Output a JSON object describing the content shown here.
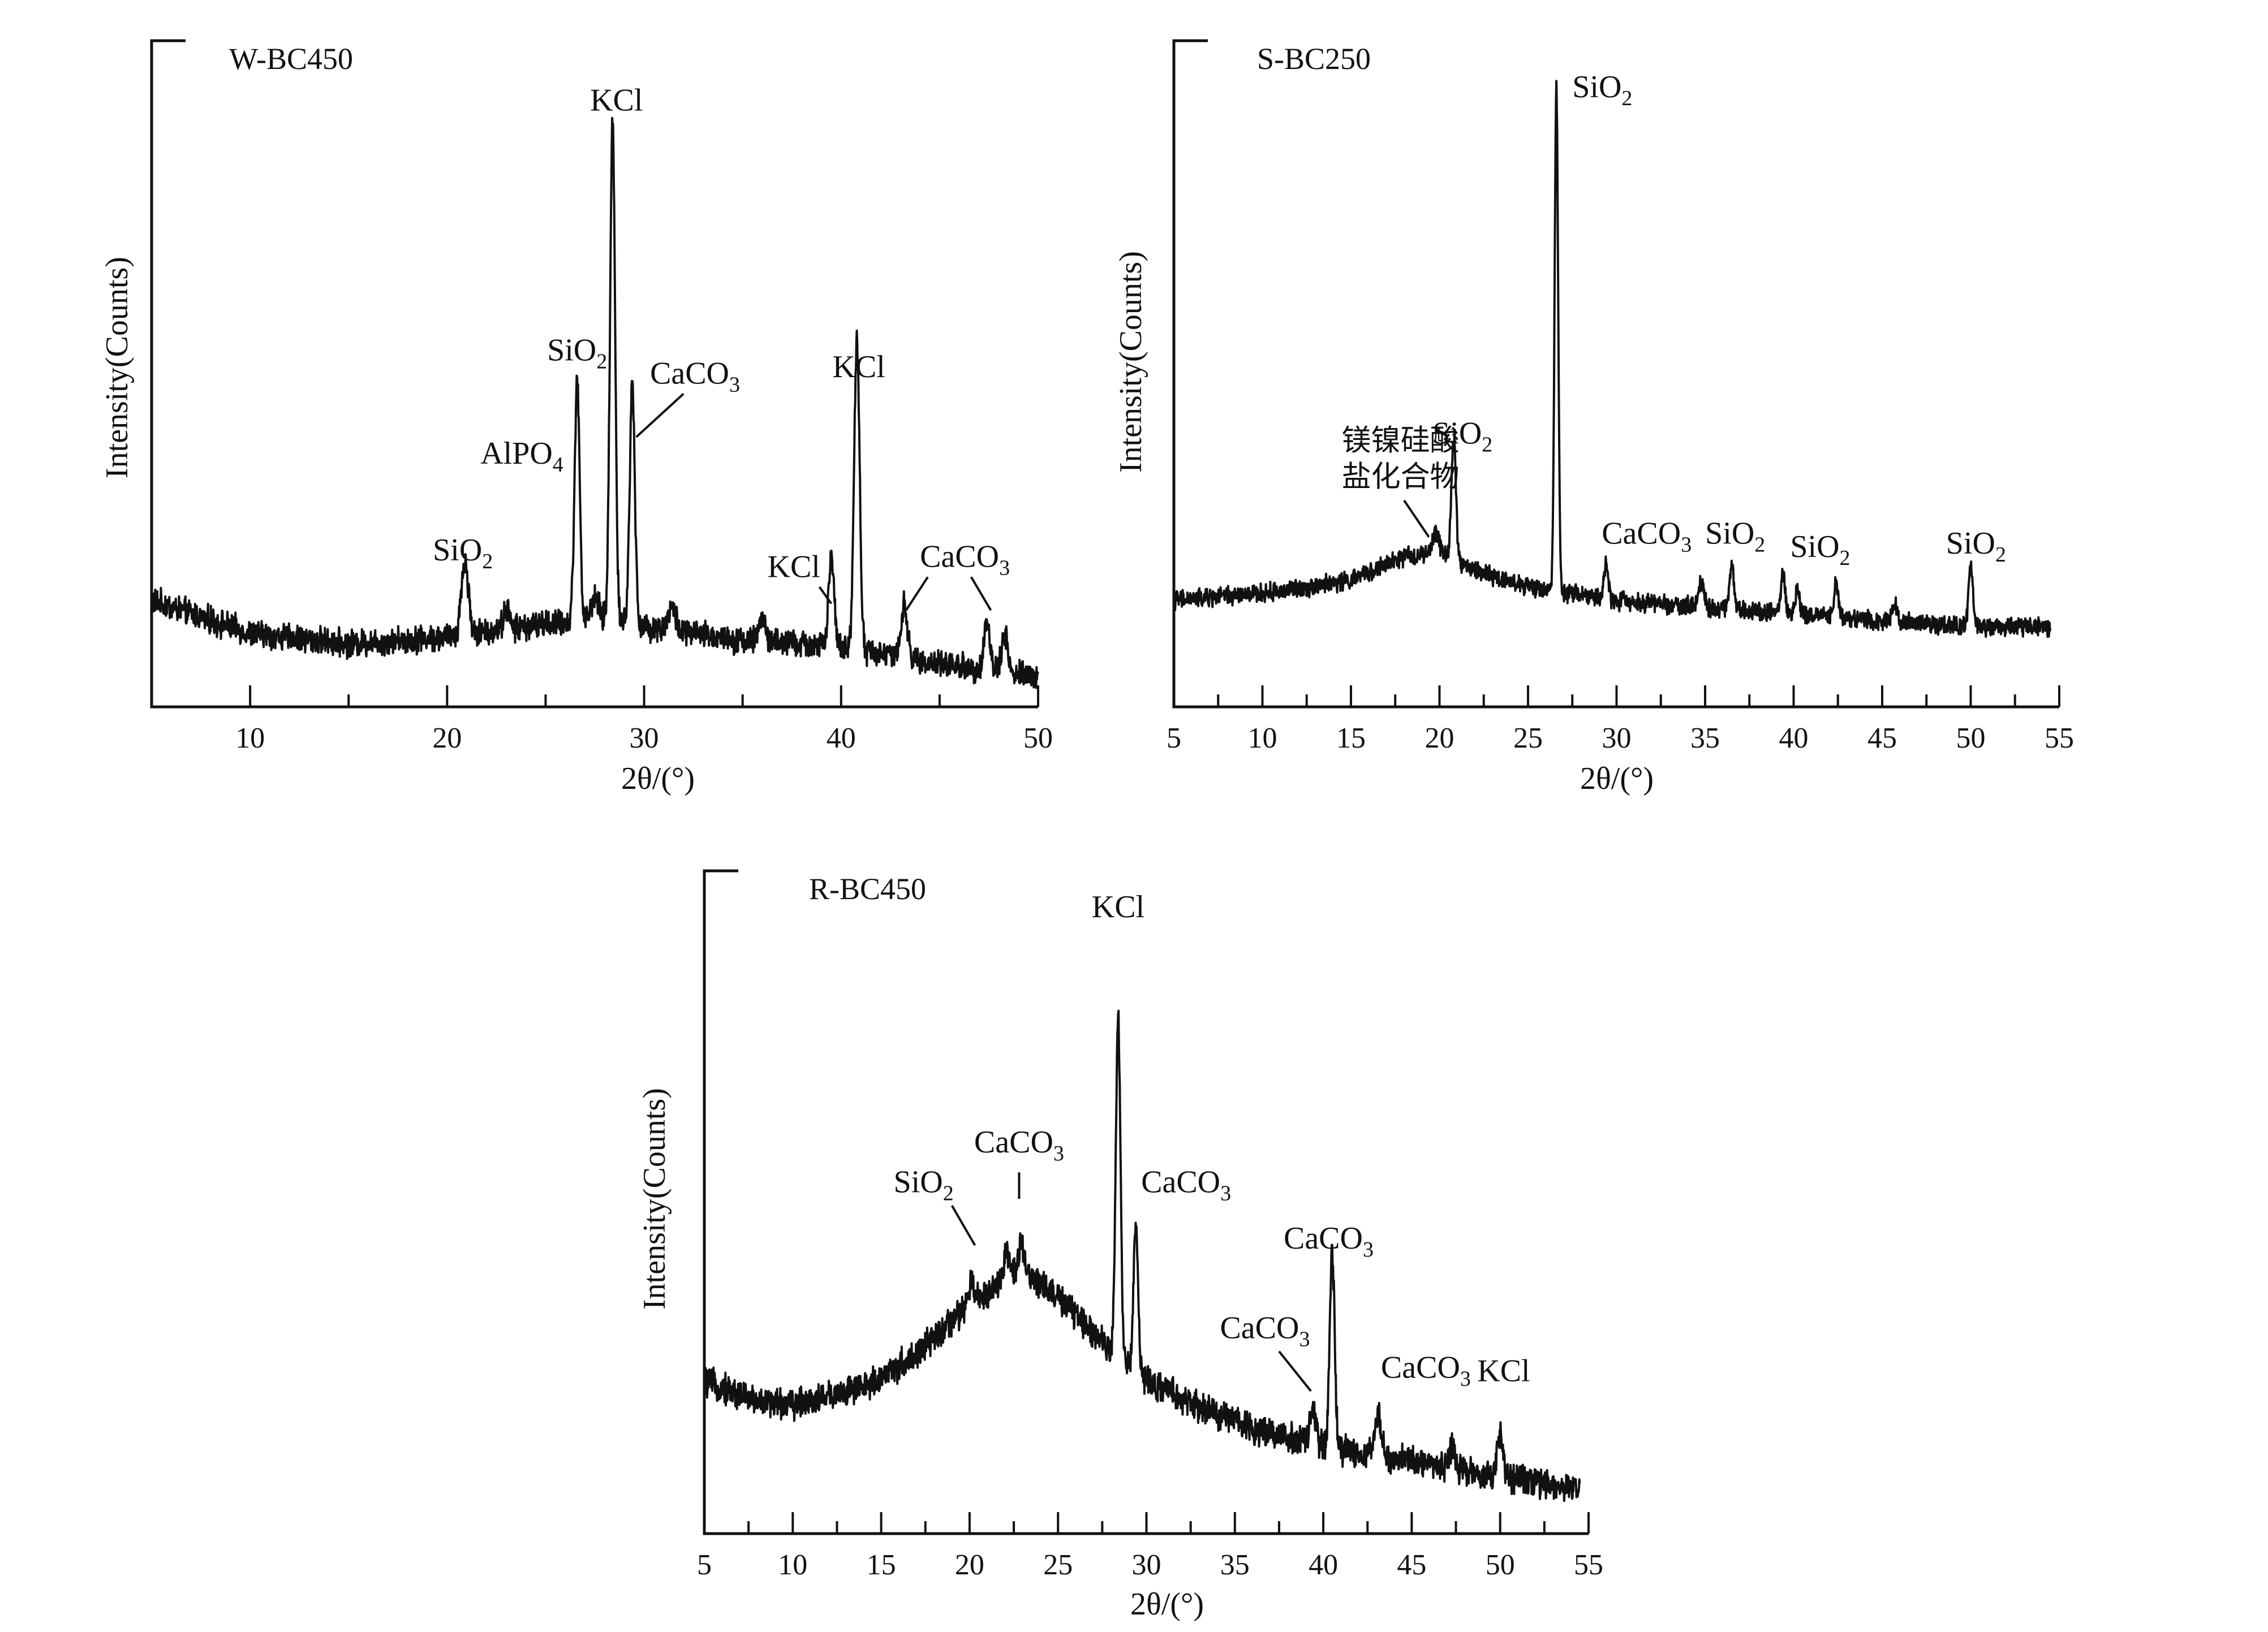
{
  "chart_data": [
    {
      "id": "w",
      "type": "line",
      "title": "W-BC450",
      "xlabel": "2θ/(°)",
      "ylabel": "Intensity(Counts)",
      "xlim": [
        5,
        50
      ],
      "ylim": [
        0,
        100
      ],
      "x_ticks": [
        10,
        20,
        30,
        40,
        50
      ],
      "grid": false,
      "legend": "none",
      "baseline": [
        [
          5,
          16
        ],
        [
          10,
          11
        ],
        [
          15,
          9.5
        ],
        [
          20,
          10.5
        ],
        [
          25,
          12.5
        ],
        [
          28,
          13
        ],
        [
          30,
          12
        ],
        [
          35,
          10
        ],
        [
          40,
          9
        ],
        [
          45,
          6.5
        ],
        [
          50,
          4.5
        ]
      ],
      "noise": 1.6,
      "peaks": [
        {
          "x": 20.9,
          "h": 11,
          "w": 0.18
        },
        {
          "x": 23.0,
          "h": 3,
          "w": 0.15
        },
        {
          "x": 26.6,
          "h": 36,
          "w": 0.13
        },
        {
          "x": 27.5,
          "h": 3.5,
          "w": 0.2
        },
        {
          "x": 28.4,
          "h": 75,
          "w": 0.13
        },
        {
          "x": 29.4,
          "h": 36,
          "w": 0.13
        },
        {
          "x": 31.4,
          "h": 3.5,
          "w": 0.2
        },
        {
          "x": 36.0,
          "h": 4,
          "w": 0.15
        },
        {
          "x": 39.5,
          "h": 13,
          "w": 0.14
        },
        {
          "x": 40.8,
          "h": 46,
          "w": 0.14
        },
        {
          "x": 43.2,
          "h": 8,
          "w": 0.15
        },
        {
          "x": 47.4,
          "h": 7,
          "w": 0.15
        },
        {
          "x": 48.3,
          "h": 6,
          "w": 0.15
        }
      ],
      "annotations": [
        {
          "base": "SiO",
          "sub": "2",
          "x": 20.8,
          "y": 22,
          "anchor": "middle",
          "leader": false
        },
        {
          "base": "AlPO",
          "sub": "4",
          "x": 25.9,
          "y": 36.5,
          "anchor": "end",
          "leader": false
        },
        {
          "base": "SiO",
          "sub": "2",
          "x": 26.6,
          "y": 52,
          "anchor": "middle",
          "leader": false
        },
        {
          "base": "KCl",
          "sub": "",
          "x": 28.6,
          "y": 89.5,
          "anchor": "middle",
          "leader": false
        },
        {
          "base": "CaCO",
          "sub": "3",
          "x": 30.3,
          "y": 48.5,
          "anchor": "start",
          "leader": true,
          "from": [
            32.0,
            47.0
          ],
          "to": [
            29.6,
            40.5
          ]
        },
        {
          "base": "KCl",
          "sub": "",
          "x": 40.9,
          "y": 49.5,
          "anchor": "middle",
          "leader": false
        },
        {
          "base": "KCl",
          "sub": "",
          "x": 37.6,
          "y": 19.5,
          "anchor": "middle",
          "leader": true,
          "from": [
            38.9,
            18.0
          ],
          "to": [
            39.5,
            15.5
          ]
        },
        {
          "base": "CaCO",
          "sub": "3",
          "x": 44.0,
          "y": 21,
          "anchor": "start",
          "leader": true,
          "from": [
            44.4,
            19.5
          ],
          "to": [
            43.3,
            14.5
          ]
        },
        {
          "base": "",
          "sub": "",
          "x": 0,
          "y": 0,
          "anchor": "start",
          "leader": true,
          "from": [
            46.6,
            19.5
          ],
          "to": [
            47.6,
            14.5
          ]
        }
      ]
    },
    {
      "id": "s",
      "type": "line",
      "title": "S-BC250",
      "xlabel": "2θ/(°)",
      "ylabel": "Intensity(Counts)",
      "xlim": [
        5,
        55
      ],
      "ylim": [
        0,
        100
      ],
      "x_ticks": [
        5,
        10,
        15,
        20,
        25,
        30,
        35,
        40,
        45,
        50,
        55
      ],
      "grid": false,
      "legend": "none",
      "baseline": [
        [
          5,
          16
        ],
        [
          10,
          17
        ],
        [
          15,
          19
        ],
        [
          18,
          22.5
        ],
        [
          20,
          23
        ],
        [
          22,
          20.5
        ],
        [
          25,
          18
        ],
        [
          30,
          16
        ],
        [
          35,
          15
        ],
        [
          40,
          14
        ],
        [
          45,
          13
        ],
        [
          50,
          12
        ],
        [
          54.5,
          12
        ]
      ],
      "noise": 1.1,
      "peaks": [
        {
          "x": 19.8,
          "h": 3,
          "w": 0.2
        },
        {
          "x": 20.8,
          "h": 18,
          "w": 0.13
        },
        {
          "x": 26.6,
          "h": 76,
          "w": 0.1
        },
        {
          "x": 29.4,
          "h": 5,
          "w": 0.12
        },
        {
          "x": 34.8,
          "h": 4,
          "w": 0.14
        },
        {
          "x": 36.5,
          "h": 7,
          "w": 0.12
        },
        {
          "x": 39.4,
          "h": 6,
          "w": 0.12
        },
        {
          "x": 40.2,
          "h": 3.5,
          "w": 0.12
        },
        {
          "x": 42.4,
          "h": 5.5,
          "w": 0.12
        },
        {
          "x": 45.7,
          "h": 2.5,
          "w": 0.15
        },
        {
          "x": 50.0,
          "h": 9,
          "w": 0.12
        }
      ],
      "annotations": [
        {
          "base": "SiO",
          "sub": "2",
          "x": 27.5,
          "y": 91.5,
          "anchor": "start",
          "leader": false
        },
        {
          "base": "SiO",
          "sub": "2",
          "x": 21.3,
          "y": 39.5,
          "anchor": "middle",
          "leader": false
        },
        {
          "base": "CaCO",
          "sub": "3",
          "x": 31.7,
          "y": 24.5,
          "anchor": "middle",
          "leader": false
        },
        {
          "base": "SiO",
          "sub": "2",
          "x": 36.7,
          "y": 24.5,
          "anchor": "middle",
          "leader": false
        },
        {
          "base": "SiO",
          "sub": "2",
          "x": 41.5,
          "y": 22.5,
          "anchor": "middle",
          "leader": false
        },
        {
          "base": "SiO",
          "sub": "2",
          "x": 50.3,
          "y": 23,
          "anchor": "middle",
          "leader": false
        }
      ],
      "cn_label": {
        "lines": [
          "镁镍硅酸",
          "盐化合物"
        ],
        "x": 17.8,
        "y": 38.5,
        "leader_from": [
          18.0,
          31.0
        ],
        "leader_to": [
          19.4,
          25.5
        ]
      }
    },
    {
      "id": "r",
      "type": "line",
      "title": "R-BC450",
      "xlabel": "2θ/(°)",
      "ylabel": "Intensity(Counts)",
      "xlim": [
        5,
        55
      ],
      "ylim": [
        0,
        100
      ],
      "x_ticks": [
        5,
        10,
        15,
        20,
        25,
        30,
        35,
        40,
        45,
        50,
        55
      ],
      "grid": false,
      "legend": "none",
      "baseline": [
        [
          5,
          23
        ],
        [
          8,
          20
        ],
        [
          10,
          19.5
        ],
        [
          14,
          22
        ],
        [
          17,
          27
        ],
        [
          20,
          34.5
        ],
        [
          22,
          38.5
        ],
        [
          23,
          39.5
        ],
        [
          24,
          38
        ],
        [
          26,
          33
        ],
        [
          28,
          28
        ],
        [
          30,
          23
        ],
        [
          33,
          19
        ],
        [
          36,
          16
        ],
        [
          40,
          13
        ],
        [
          45,
          11
        ],
        [
          50,
          8.5
        ],
        [
          54.5,
          7
        ]
      ],
      "noise": 1.8,
      "peaks": [
        {
          "x": 20.1,
          "h": 3,
          "w": 0.15
        },
        {
          "x": 22.1,
          "h": 4.5,
          "w": 0.15
        },
        {
          "x": 22.9,
          "h": 4,
          "w": 0.15
        },
        {
          "x": 28.4,
          "h": 51,
          "w": 0.13
        },
        {
          "x": 29.4,
          "h": 22,
          "w": 0.13
        },
        {
          "x": 39.4,
          "h": 6,
          "w": 0.15
        },
        {
          "x": 40.5,
          "h": 30,
          "w": 0.14
        },
        {
          "x": 43.1,
          "h": 6,
          "w": 0.18
        },
        {
          "x": 47.3,
          "h": 3,
          "w": 0.18
        },
        {
          "x": 50.0,
          "h": 7,
          "w": 0.15
        }
      ],
      "annotations": [
        {
          "base": "SiO",
          "sub": "2",
          "x": 17.4,
          "y": 51.5,
          "anchor": "middle",
          "leader": true,
          "from": [
            19.0,
            49.5
          ],
          "to": [
            20.3,
            43.5
          ]
        },
        {
          "base": "CaCO",
          "sub": "3",
          "x": 22.8,
          "y": 57.5,
          "anchor": "middle",
          "leader": true,
          "from": [
            22.8,
            54.5
          ],
          "to": [
            22.8,
            50.5
          ]
        },
        {
          "base": "CaCO",
          "sub": "3",
          "x": 29.7,
          "y": 51.5,
          "anchor": "start",
          "leader": false
        },
        {
          "base": "KCl",
          "sub": "",
          "x": 28.4,
          "y": 93,
          "anchor": "middle",
          "leader": false
        },
        {
          "base": "CaCO",
          "sub": "3",
          "x": 40.3,
          "y": 43,
          "anchor": "middle",
          "leader": false
        },
        {
          "base": "CaCO",
          "sub": "3",
          "x": 36.7,
          "y": 29.5,
          "anchor": "middle",
          "leader": true,
          "from": [
            37.5,
            27.5
          ],
          "to": [
            39.3,
            21.5
          ]
        },
        {
          "base": "CaCO",
          "sub": "3",
          "x": 45.8,
          "y": 23.5,
          "anchor": "middle",
          "leader": false
        },
        {
          "base": "KCl",
          "sub": "",
          "x": 50.2,
          "y": 23,
          "anchor": "middle",
          "leader": false
        }
      ]
    }
  ]
}
